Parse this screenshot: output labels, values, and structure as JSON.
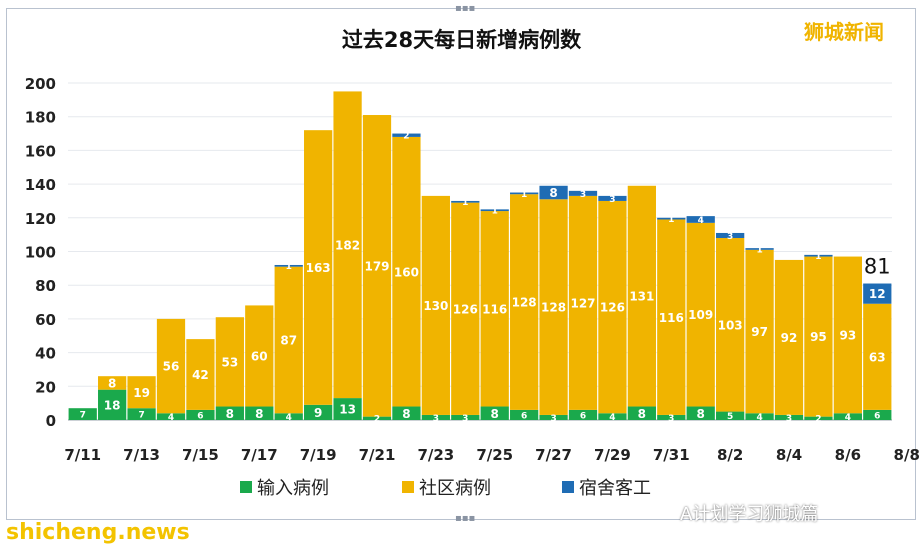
{
  "chart_data": {
    "type": "bar",
    "title": "过去28天每日新增病例数",
    "categories": [
      "7/11",
      "7/12",
      "7/13",
      "7/14",
      "7/15",
      "7/16",
      "7/17",
      "7/18",
      "7/19",
      "7/20",
      "7/21",
      "7/22",
      "7/23",
      "7/24",
      "7/25",
      "7/26",
      "7/27",
      "7/28",
      "7/29",
      "7/30",
      "7/31",
      "8/1",
      "8/2",
      "8/3",
      "8/4",
      "8/5",
      "8/6",
      "8/7"
    ],
    "x_tick_labels": [
      "7/11",
      "7/13",
      "7/15",
      "7/17",
      "7/19",
      "7/21",
      "7/23",
      "7/25",
      "7/27",
      "7/29",
      "7/31",
      "8/2",
      "8/4",
      "8/6",
      "8/8"
    ],
    "series": [
      {
        "name": "输入病例",
        "color": "#1aa94c",
        "values": [
          7,
          18,
          7,
          4,
          6,
          8,
          8,
          4,
          9,
          13,
          2,
          8,
          3,
          3,
          8,
          6,
          3,
          6,
          4,
          8,
          3,
          8,
          5,
          4,
          3,
          2,
          4,
          6
        ]
      },
      {
        "name": "社区病例",
        "color": "#f0b400",
        "values": [
          0,
          8,
          19,
          56,
          42,
          53,
          60,
          87,
          163,
          182,
          179,
          160,
          130,
          126,
          116,
          128,
          128,
          127,
          126,
          131,
          116,
          109,
          103,
          97,
          92,
          95,
          93,
          63
        ]
      },
      {
        "name": "宿舍客工",
        "color": "#1f6cb4",
        "values": [
          0,
          0,
          0,
          0,
          0,
          0,
          0,
          1,
          0,
          0,
          0,
          2,
          0,
          1,
          1,
          1,
          8,
          3,
          3,
          0,
          1,
          4,
          3,
          1,
          0,
          1,
          0,
          12
        ]
      }
    ],
    "segment_labels": [
      [
        "7",
        "18",
        "7",
        "4",
        "6",
        "8",
        "8",
        "4",
        "9",
        "13",
        "2",
        "8",
        "3",
        "3",
        "8",
        "6",
        "3",
        "6",
        "4",
        "8",
        "3",
        "8",
        "5",
        "4",
        "3",
        "2",
        "4",
        "6"
      ],
      [
        "",
        "8",
        "19",
        "56",
        "42",
        "53",
        "60",
        "87",
        "163",
        "182",
        "179",
        "160",
        "130",
        "126",
        "116",
        "128",
        "128",
        "127",
        "126",
        "131",
        "116",
        "109",
        "103",
        "97",
        "92",
        "95",
        "93",
        "63"
      ],
      [
        "",
        "",
        "",
        "",
        "",
        "",
        "",
        "1",
        "",
        "",
        "",
        "2",
        "",
        "1",
        "1",
        "1",
        "8",
        "3",
        "3",
        "",
        "1",
        "4",
        "3",
        "1",
        "",
        "1",
        "",
        "12"
      ]
    ],
    "total_annotation": {
      "category": "8/7",
      "text": "81"
    },
    "ylim": [
      0,
      200
    ],
    "yticks": [
      0,
      20,
      40,
      60,
      80,
      100,
      120,
      140,
      160,
      180,
      200
    ],
    "grid": true,
    "legend_position": "bottom"
  },
  "watermarks": {
    "top_right": "狮城新闻",
    "bottom_left": "shicheng.news",
    "bottom_right": "A计划学习狮城篇"
  }
}
